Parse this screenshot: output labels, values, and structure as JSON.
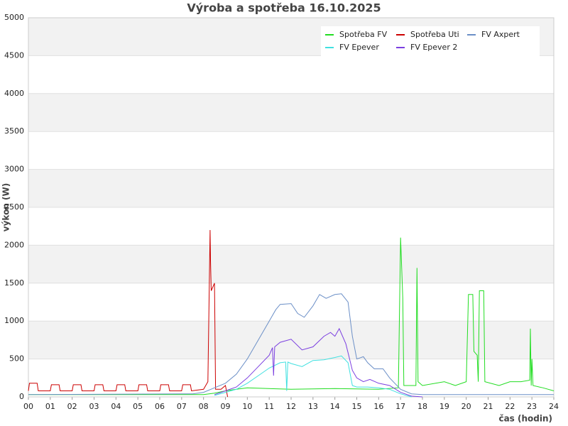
{
  "chart_data": {
    "type": "line",
    "title": "Výroba a spotřeba 16.10.2025",
    "x_label": "čas (hodin)",
    "y_label": "výkon (W)",
    "xlim": [
      0,
      24
    ],
    "ylim": [
      0,
      5000
    ],
    "yticks": [
      0,
      500,
      1000,
      1500,
      2000,
      2500,
      3000,
      3500,
      4000,
      4500,
      5000
    ],
    "xticks": [
      {
        "value": 0,
        "label": "00"
      },
      {
        "value": 1,
        "label": "01"
      },
      {
        "value": 2,
        "label": "02"
      },
      {
        "value": 3,
        "label": "03"
      },
      {
        "value": 4,
        "label": "04"
      },
      {
        "value": 5,
        "label": "05"
      },
      {
        "value": 6,
        "label": "06"
      },
      {
        "value": 7,
        "label": "07"
      },
      {
        "value": 8,
        "label": "08"
      },
      {
        "value": 9,
        "label": "09"
      },
      {
        "value": 10,
        "label": "10"
      },
      {
        "value": 11,
        "label": "11"
      },
      {
        "value": 12,
        "label": "12"
      },
      {
        "value": 13,
        "label": "13"
      },
      {
        "value": 14,
        "label": "14"
      },
      {
        "value": 15,
        "label": "15"
      },
      {
        "value": 16,
        "label": "16"
      },
      {
        "value": 17,
        "label": "17"
      },
      {
        "value": 18,
        "label": "18"
      },
      {
        "value": 19,
        "label": "19"
      },
      {
        "value": 20,
        "label": "20"
      },
      {
        "value": 21,
        "label": "21"
      },
      {
        "value": 22,
        "label": "22"
      },
      {
        "value": 23,
        "label": "23"
      },
      {
        "value": 24,
        "label": "24"
      }
    ],
    "grid": true,
    "legend": "upper right",
    "series": [
      {
        "name": "Spotřeba FV",
        "color": "#22dd22",
        "x": [
          0,
          8,
          8.5,
          9,
          9.5,
          10,
          12,
          14,
          16,
          16.9,
          17.0,
          17.1,
          17.15,
          17.7,
          17.75,
          17.8,
          18,
          19,
          19.5,
          20.0,
          20.1,
          20.3,
          20.35,
          20.5,
          20.55,
          20.6,
          20.8,
          20.85,
          21.5,
          22,
          22.5,
          22.9,
          22.93,
          22.97,
          23,
          23.05,
          23.5,
          24
        ],
        "values": [
          30,
          30,
          50,
          80,
          100,
          120,
          100,
          110,
          100,
          120,
          2100,
          1300,
          150,
          150,
          1700,
          200,
          150,
          200,
          150,
          200,
          1350,
          1350,
          600,
          550,
          200,
          1400,
          1400,
          200,
          150,
          200,
          200,
          220,
          900,
          150,
          500,
          150,
          120,
          80
        ]
      },
      {
        "name": "Spotřeba Uti",
        "color": "#cc0000",
        "x": [
          0,
          0.05,
          0.4,
          0.45,
          1,
          1.05,
          1.4,
          1.45,
          2,
          2.05,
          2.4,
          2.45,
          3,
          3.05,
          3.4,
          3.45,
          4,
          4.05,
          4.4,
          4.45,
          5,
          5.05,
          5.4,
          5.45,
          6,
          6.05,
          6.4,
          6.45,
          7,
          7.05,
          7.4,
          7.45,
          8,
          8.2,
          8.3,
          8.32,
          8.35,
          8.5,
          8.55,
          8.8,
          9.0,
          9.1
        ],
        "values": [
          80,
          180,
          180,
          80,
          80,
          160,
          160,
          80,
          80,
          160,
          160,
          80,
          80,
          160,
          160,
          80,
          80,
          160,
          160,
          80,
          80,
          160,
          160,
          80,
          80,
          160,
          160,
          80,
          80,
          160,
          160,
          80,
          100,
          200,
          2200,
          1800,
          1400,
          1500,
          100,
          100,
          150,
          0
        ]
      },
      {
        "name": "FV Axpert",
        "color": "#6b8fc7",
        "x": [
          0,
          7.5,
          8,
          8.5,
          9,
          9.5,
          10,
          10.5,
          11,
          11.3,
          11.5,
          12,
          12.3,
          12.6,
          13,
          13.3,
          13.6,
          14,
          14.3,
          14.6,
          14.8,
          15,
          15.3,
          15.5,
          15.8,
          16.2,
          16.5,
          17,
          17.5,
          18,
          24
        ],
        "values": [
          30,
          40,
          60,
          120,
          180,
          300,
          500,
          750,
          1000,
          1150,
          1220,
          1230,
          1100,
          1050,
          1200,
          1350,
          1300,
          1350,
          1360,
          1250,
          800,
          500,
          530,
          450,
          370,
          370,
          250,
          100,
          40,
          30,
          30
        ]
      },
      {
        "name": "FV Epever",
        "color": "#40e0e0",
        "x": [
          8.5,
          9,
          9.5,
          10,
          10.5,
          11,
          11.5,
          11.75,
          11.8,
          11.85,
          12,
          12.5,
          13,
          13.5,
          14,
          14.3,
          14.6,
          14.8,
          15,
          15.5,
          16,
          16.5,
          17,
          17.5
        ],
        "values": [
          20,
          60,
          100,
          180,
          280,
          380,
          450,
          460,
          80,
          460,
          440,
          400,
          480,
          490,
          520,
          540,
          450,
          150,
          130,
          130,
          120,
          100,
          40,
          0
        ]
      },
      {
        "name": "FV Epever 2",
        "color": "#7b3fe0",
        "x": [
          8.5,
          9,
          9.5,
          10,
          10.5,
          11,
          11.15,
          11.2,
          11.25,
          11.5,
          12,
          12.5,
          13,
          13.5,
          13.8,
          14,
          14.2,
          14.5,
          14.8,
          15,
          15.3,
          15.6,
          16,
          16.5,
          17,
          17.5,
          18
        ],
        "values": [
          30,
          80,
          130,
          250,
          400,
          550,
          650,
          280,
          660,
          720,
          760,
          620,
          660,
          800,
          850,
          800,
          900,
          700,
          350,
          250,
          200,
          230,
          180,
          150,
          60,
          10,
          0
        ]
      }
    ]
  }
}
